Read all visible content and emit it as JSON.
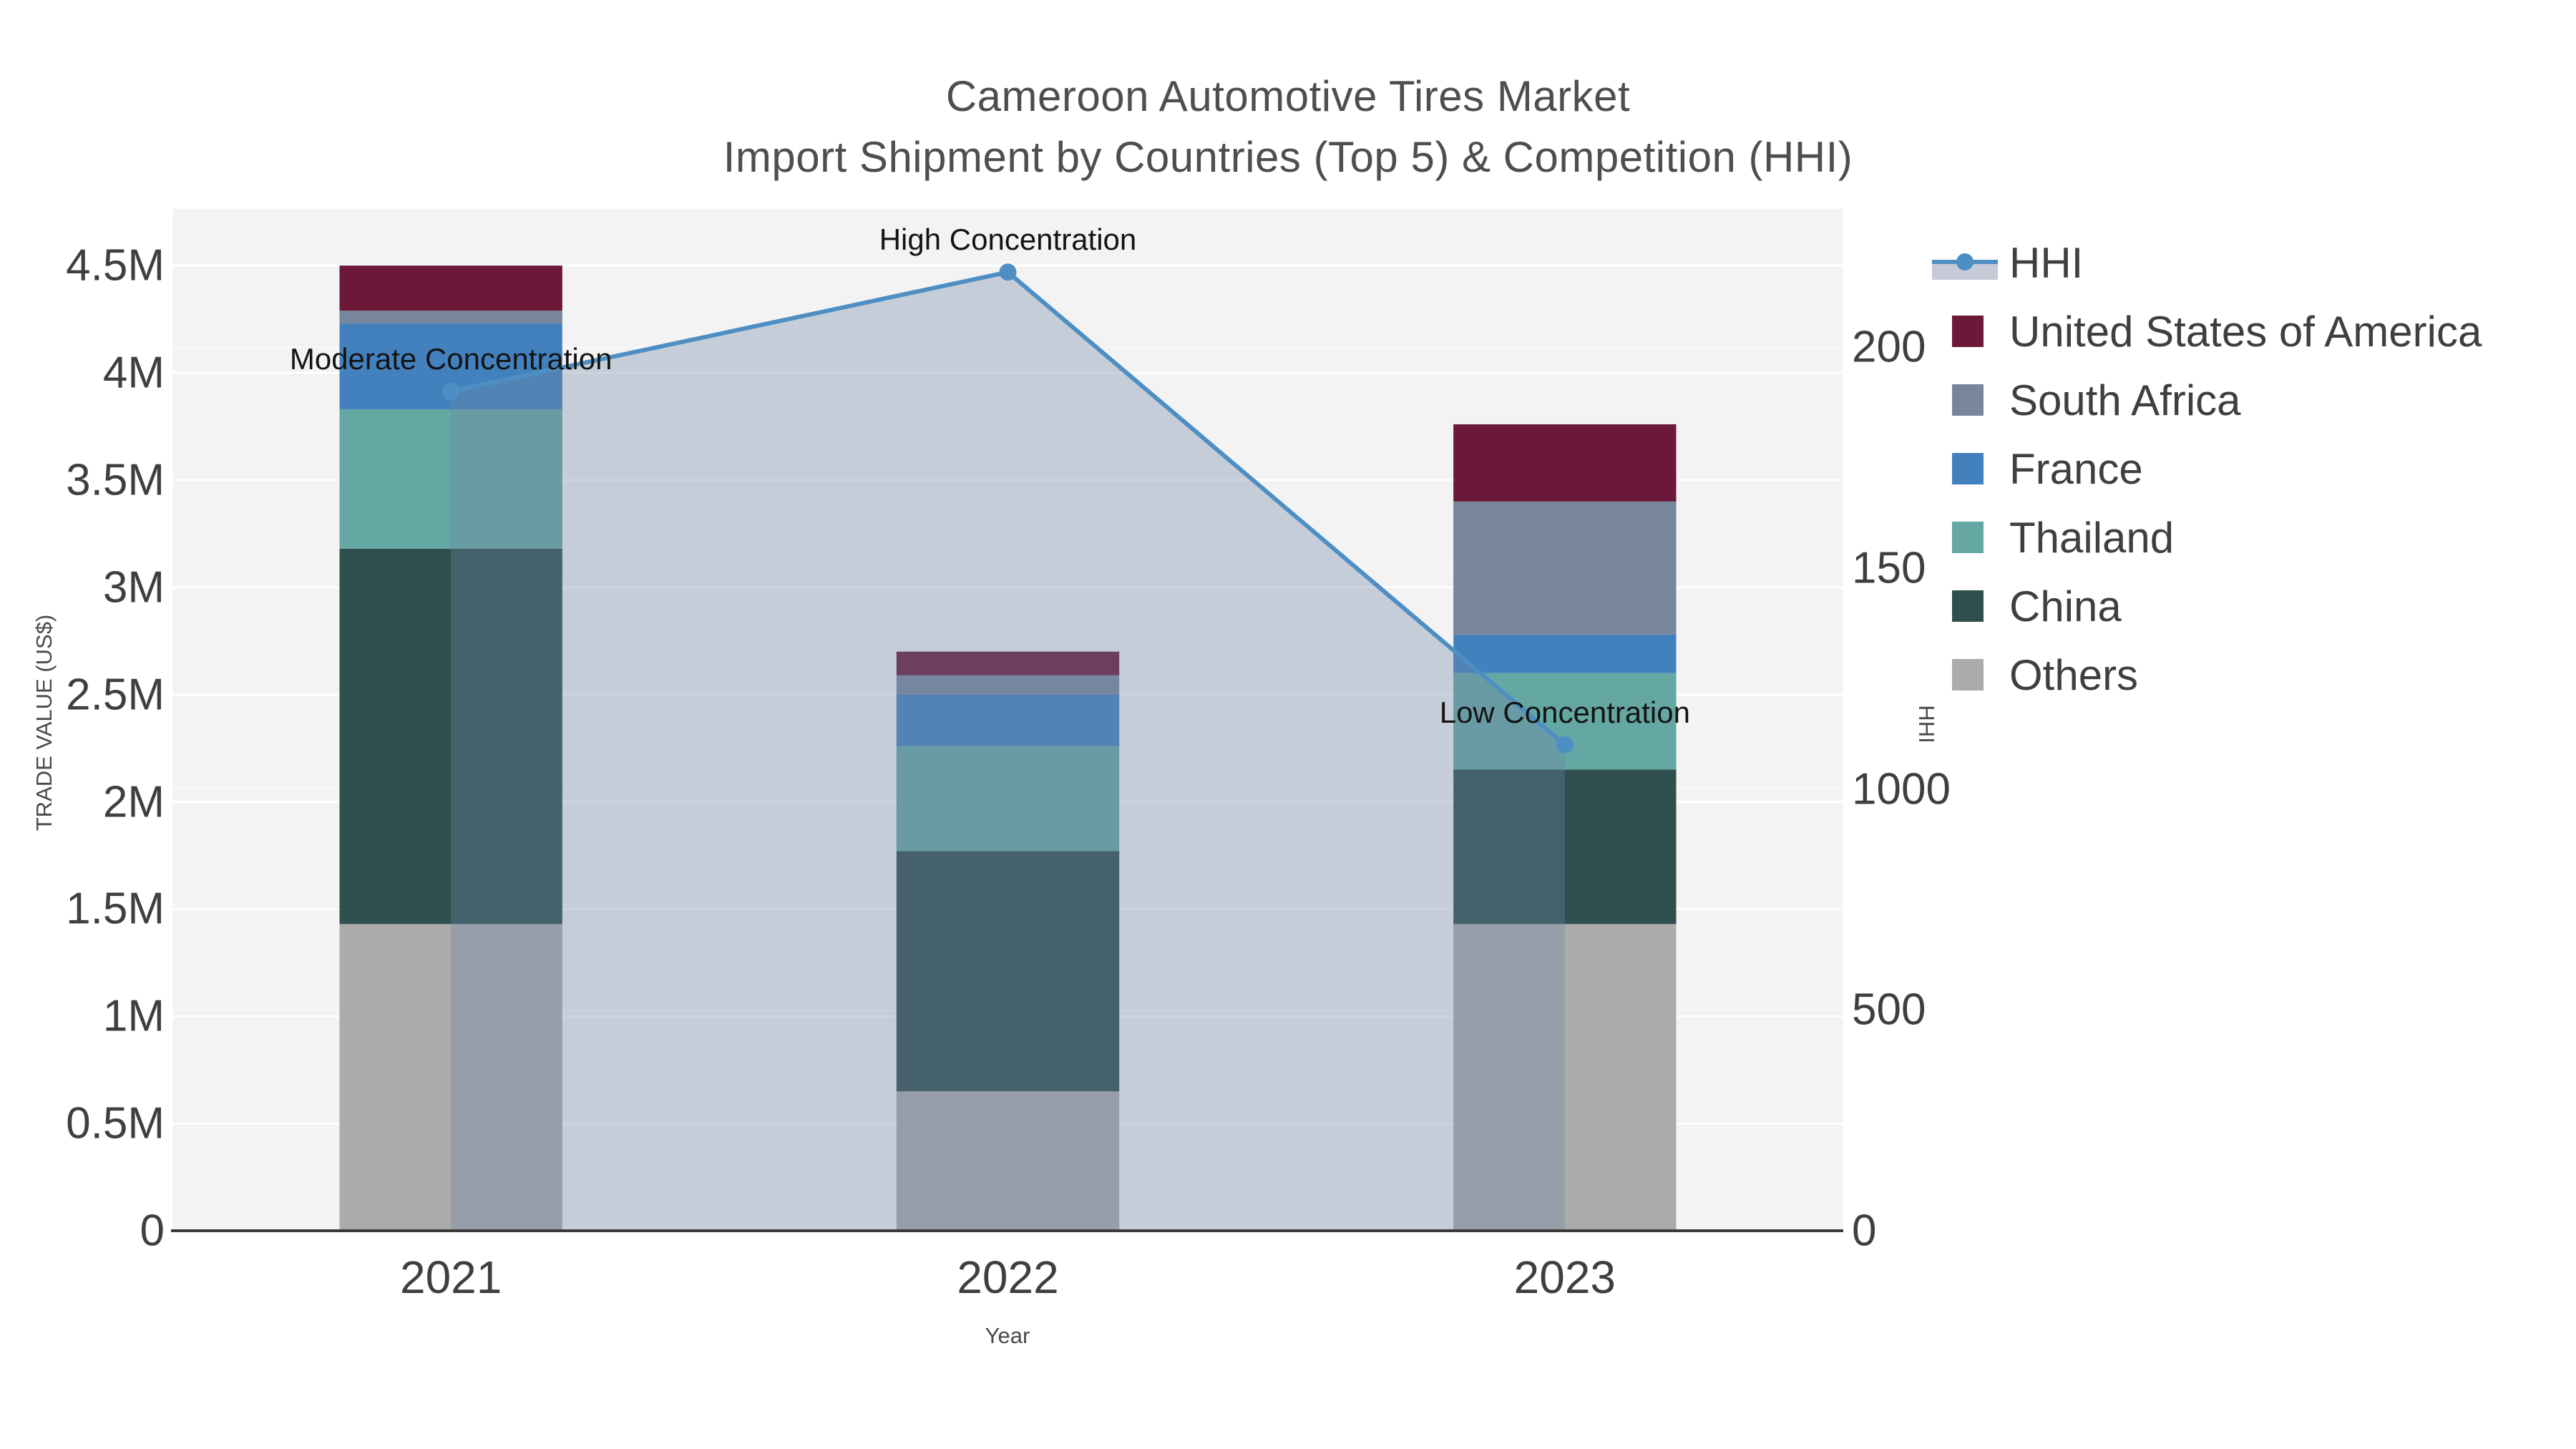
{
  "title": {
    "line1": "Cameroon Automotive Tires Market",
    "line2": "Import Shipment by Countries (Top 5) & Competition (HHI)"
  },
  "colors": {
    "page_bg": "#ffffff",
    "plot_bg": "#f3f3f3",
    "grid_left": "#ffffff",
    "grid_right": "#fbfbfb",
    "axis_line": "#3a3a3a",
    "tick_text": "#3f3f3f",
    "title_text": "#4e4e4e",
    "annotation_text": "#141414",
    "hhi_line": "#4e8fc3",
    "hhi_fill": "rgba(113,134,165,0.35)",
    "hhi_legend_band": "#c6cbd7"
  },
  "legend": {
    "items": [
      {
        "label": "HHI",
        "type": "line",
        "color": "#4e8fc3"
      },
      {
        "label": "United States of America",
        "type": "square",
        "color": "#6b1839"
      },
      {
        "label": "South Africa",
        "type": "square",
        "color": "#78869b"
      },
      {
        "label": "France",
        "type": "square",
        "color": "#4381be"
      },
      {
        "label": "Thailand",
        "type": "square",
        "color": "#64a7a3"
      },
      {
        "label": "China",
        "type": "square",
        "color": "#2f4f4e"
      },
      {
        "label": "Others",
        "type": "square",
        "color": "#ababab"
      }
    ]
  },
  "chart_data": {
    "type": "combo-stacked-bar-line",
    "categories": [
      "2021",
      "2022",
      "2023"
    ],
    "bar_stack_order_bottom_to_top": [
      "Others",
      "China",
      "Thailand",
      "France",
      "South Africa",
      "United States of America"
    ],
    "bar_series": [
      {
        "name": "Others",
        "color": "#ababab",
        "values": [
          1430000,
          650000,
          1430000
        ]
      },
      {
        "name": "China",
        "color": "#2f4f4e",
        "values": [
          1750000,
          1120000,
          720000
        ]
      },
      {
        "name": "Thailand",
        "color": "#64a7a3",
        "values": [
          650000,
          490000,
          450000
        ]
      },
      {
        "name": "France",
        "color": "#4381be",
        "values": [
          400000,
          240000,
          180000
        ]
      },
      {
        "name": "South Africa",
        "color": "#78869b",
        "values": [
          60000,
          90000,
          620000
        ]
      },
      {
        "name": "United States of America",
        "color": "#6b1839",
        "values": [
          210000,
          110000,
          360000
        ]
      }
    ],
    "bar_totals": [
      4500000,
      2700000,
      3760000
    ],
    "line_series": {
      "name": "HHI",
      "color": "#4e8fc3",
      "fill_color": "rgba(113,134,165,0.35)",
      "values": [
        1900,
        2170,
        1100
      ],
      "axis": "right"
    },
    "annotations": [
      {
        "text": "Moderate Concentration",
        "category": "2021",
        "hhi_value": 1900
      },
      {
        "text": "High Concentration",
        "category": "2022",
        "hhi_value": 2170
      },
      {
        "text": "Low Concentration",
        "category": "2023",
        "hhi_value": 1100
      }
    ],
    "xaxis": {
      "title": "Year",
      "tick_labels": [
        "2021",
        "2022",
        "2023"
      ]
    },
    "yaxis": {
      "title": "TRADE VALUE (US$)",
      "range": [
        0,
        4764000
      ],
      "ticks": [
        0,
        500000,
        1000000,
        1500000,
        2000000,
        2500000,
        3000000,
        3500000,
        4000000,
        4500000
      ],
      "tick_labels": [
        "0",
        "0.5M",
        "1M",
        "1.5M",
        "2M",
        "2.5M",
        "3M",
        "3.5M",
        "4M",
        "4.5M"
      ],
      "grid": true,
      "side": "left"
    },
    "yaxis2": {
      "title": "HHI",
      "range": [
        0,
        2313
      ],
      "ticks": [
        0,
        500,
        1000,
        1500,
        2000
      ],
      "tick_labels_visible": [
        "0",
        "500",
        "1000",
        "150",
        "200"
      ],
      "grid": true,
      "side": "right",
      "note_values": [
        0,
        500,
        1000,
        1500,
        2000
      ]
    },
    "legend_position": "top-right-outside"
  }
}
